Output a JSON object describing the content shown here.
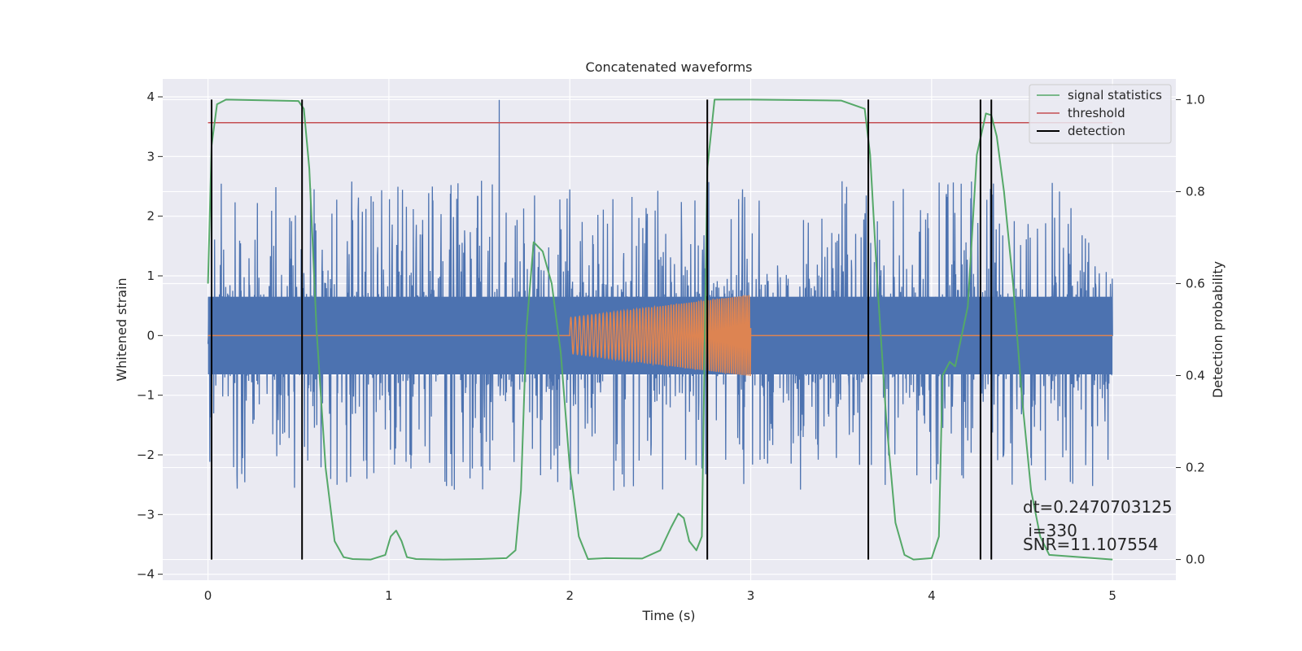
{
  "chart_data": {
    "type": "line",
    "title": "Concatenated waveforms",
    "xlabel": "Time (s)",
    "ylabel": "Whitened strain",
    "ylabel_right": "Detection probability",
    "xlim": [
      -0.25,
      5.35
    ],
    "ylim": [
      -4.1,
      4.3
    ],
    "ylim_right": [
      -0.045,
      1.045
    ],
    "x_ticks": [
      0,
      1,
      2,
      3,
      4,
      5
    ],
    "y_ticks": [
      -4,
      -3,
      -2,
      -1,
      0,
      1,
      2,
      3,
      4
    ],
    "y_ticks_right": [
      0.0,
      0.2,
      0.4,
      0.6,
      0.8,
      1.0
    ],
    "y_tick_labels": [
      "−4",
      "−3",
      "−2",
      "−1",
      "0",
      "1",
      "2",
      "3",
      "4"
    ],
    "y_tick_labels_right": [
      "0.0",
      "0.2",
      "0.4",
      "0.6",
      "0.8",
      "1.0"
    ],
    "grid": true,
    "legend_position": "top-right",
    "colors": {
      "background": "#eaeaf2",
      "grid": "#ffffff",
      "strain": "#4c72b0",
      "injected": "#dd8452",
      "signal_statistics": "#55a868",
      "threshold": "#c44e52",
      "detection": "#000000"
    },
    "strain_noise": {
      "x_range": [
        0,
        5
      ],
      "band": 0.65,
      "max_spike": 3.95,
      "spike_at": 1.61
    },
    "injected_waveform": {
      "x_range": [
        2.0,
        3.0
      ],
      "amplitude_start": 0.3,
      "amplitude_end": 0.68,
      "freq_start": 40,
      "freq_end": 90
    },
    "signal_statistics": {
      "axis": "right",
      "x": [
        0,
        0.02,
        0.05,
        0.1,
        0.5,
        0.53,
        0.56,
        0.6,
        0.65,
        0.7,
        0.75,
        0.8,
        0.9,
        0.98,
        1.01,
        1.04,
        1.07,
        1.1,
        1.15,
        1.3,
        1.5,
        1.65,
        1.7,
        1.73,
        1.76,
        1.8,
        1.85,
        1.9,
        1.95,
        2.0,
        2.05,
        2.1,
        2.2,
        2.4,
        2.5,
        2.56,
        2.6,
        2.63,
        2.66,
        2.7,
        2.73,
        2.76,
        2.8,
        2.9,
        3.0,
        3.5,
        3.63,
        3.66,
        3.7,
        3.75,
        3.8,
        3.85,
        3.9,
        4.0,
        4.04,
        4.06,
        4.1,
        4.13,
        4.2,
        4.25,
        4.3,
        4.33,
        4.36,
        4.4,
        4.45,
        4.5,
        4.55,
        4.6,
        4.65,
        5.0
      ],
      "y": [
        0.6,
        0.9,
        0.99,
        1.0,
        0.997,
        0.98,
        0.85,
        0.5,
        0.2,
        0.04,
        0.005,
        0.001,
        0.0,
        0.01,
        0.05,
        0.063,
        0.04,
        0.005,
        0.001,
        0.0,
        0.001,
        0.003,
        0.02,
        0.15,
        0.5,
        0.69,
        0.67,
        0.6,
        0.45,
        0.2,
        0.05,
        0.001,
        0.003,
        0.002,
        0.02,
        0.07,
        0.1,
        0.09,
        0.04,
        0.02,
        0.05,
        0.85,
        1.0,
        1.0,
        1.0,
        0.998,
        0.98,
        0.88,
        0.6,
        0.3,
        0.08,
        0.01,
        0.0,
        0.003,
        0.05,
        0.4,
        0.43,
        0.42,
        0.55,
        0.88,
        0.97,
        0.966,
        0.92,
        0.8,
        0.6,
        0.35,
        0.15,
        0.05,
        0.01,
        0.0
      ]
    },
    "threshold": {
      "axis": "right",
      "y": 0.95,
      "x_range": [
        0,
        5
      ]
    },
    "detection": {
      "axis": "right",
      "x": [
        0.02,
        0.52,
        2.76,
        3.65,
        4.27,
        4.33
      ],
      "y_range": [
        0,
        1.0
      ]
    },
    "legend": [
      "signal statistics",
      "threshold",
      "detection"
    ],
    "annotations": [
      "dt=0.2470703125",
      " i=330",
      "SNR=11.107554"
    ]
  }
}
